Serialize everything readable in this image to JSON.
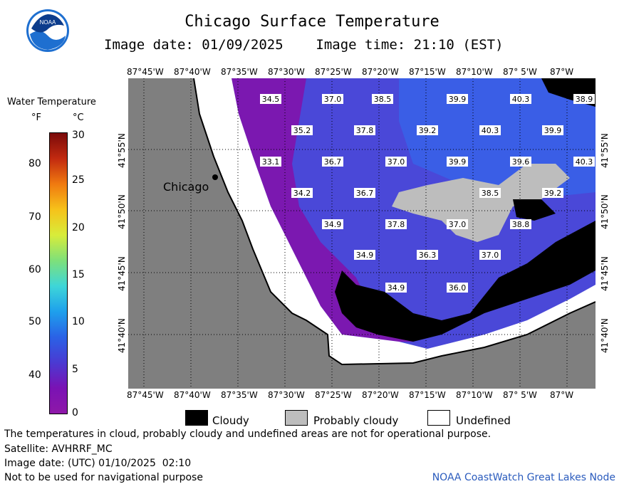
{
  "header": {
    "title": "Chicago Surface Temperature",
    "subtitle": "Image date: 01/09/2025    Image time: 21:10 (EST)"
  },
  "colorbar": {
    "title": "Water Temperature",
    "unit_f": "°F",
    "unit_c": "°C",
    "f_ticks": [
      "80",
      "70",
      "60",
      "50",
      "40"
    ],
    "c_ticks": [
      "30",
      "25",
      "20",
      "15",
      "10",
      "5",
      "0"
    ],
    "colors": [
      "#7a0a0a",
      "#c22a10",
      "#f07a10",
      "#f6c21a",
      "#d8ec3a",
      "#7ee07a",
      "#3ed6d8",
      "#1ea0ec",
      "#2a62e6",
      "#4a3ad2",
      "#7a12b4",
      "#8e18a8"
    ]
  },
  "map": {
    "city_label": "Chicago",
    "lon_labels": [
      "87°45'W",
      "87°40'W",
      "87°35'W",
      "87°30'W",
      "87°25'W",
      "87°20'W",
      "87°15'W",
      "87°10'W",
      "87° 5'W",
      "87°W"
    ],
    "lat_labels": [
      "41°55'N",
      "41°50'N",
      "41°45'N",
      "41°40'N"
    ],
    "colors": {
      "land": "#7f7f7f",
      "cold": "#7b18b0",
      "cool": "#4a48d8",
      "warm": "#3a5ee6",
      "cloud": "#000000",
      "probable_cloud": "#bdbdbd",
      "undefined": "#ffffff"
    },
    "temps": [
      {
        "v": "34.5"
      },
      {
        "v": "37.0"
      },
      {
        "v": "38.5"
      },
      {
        "v": "39.9"
      },
      {
        "v": "40.3"
      },
      {
        "v": "38.9"
      },
      {
        "v": "35.2"
      },
      {
        "v": "37.8"
      },
      {
        "v": "39.2"
      },
      {
        "v": "40.3"
      },
      {
        "v": "39.9"
      },
      {
        "v": "33.1"
      },
      {
        "v": "36.7"
      },
      {
        "v": "37.0"
      },
      {
        "v": "39.9"
      },
      {
        "v": "39.6"
      },
      {
        "v": "40.3"
      },
      {
        "v": "34.2"
      },
      {
        "v": "36.7"
      },
      {
        "v": "38.5"
      },
      {
        "v": "39.2"
      },
      {
        "v": "34.9"
      },
      {
        "v": "37.8"
      },
      {
        "v": "37.0"
      },
      {
        "v": "38.8"
      },
      {
        "v": "34.9"
      },
      {
        "v": "36.3"
      },
      {
        "v": "37.0"
      },
      {
        "v": "34.9"
      },
      {
        "v": "36.0"
      }
    ]
  },
  "legend": {
    "cloudy": "Cloudy",
    "probably_cloudy": "Probably cloudy",
    "undefined": "Undefined"
  },
  "footer": {
    "line1": "The temperatures in cloud, probably cloudy and undefined areas are not for operational purpose.",
    "line2": "Satellite: AVHRRF_MC",
    "line3": "Image date: (UTC) 01/10/2025  02:10",
    "line4": "Not to be used for navigational purpose",
    "credit": "NOAA CoastWatch Great Lakes Node"
  }
}
